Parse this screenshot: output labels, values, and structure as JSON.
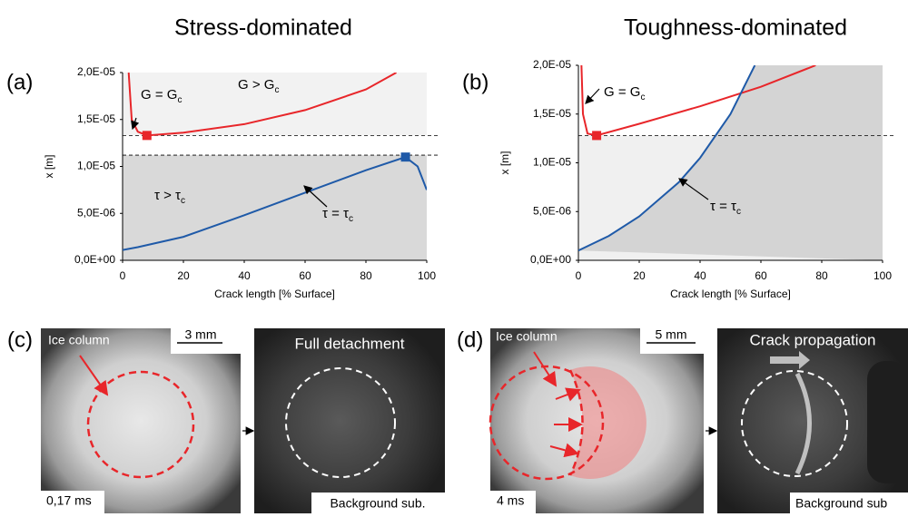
{
  "chart_data": [
    {
      "type": "line",
      "panel": "(a)",
      "title": "Stress-dominated",
      "xlabel": "Crack length [% Surface]",
      "ylabel": "x [m]",
      "xlim": [
        0,
        100
      ],
      "ylim": [
        0,
        2e-05
      ],
      "xticks": [
        0,
        20,
        40,
        60,
        80,
        100
      ],
      "yticks": [
        {
          "value": 0,
          "label": "0,0E+00"
        },
        {
          "value": 5e-06,
          "label": "5,0E-06"
        },
        {
          "value": 1e-05,
          "label": "1,0E-05"
        },
        {
          "value": 1.5e-05,
          "label": "1,5E-05"
        },
        {
          "value": 2e-05,
          "label": "2,0E-05"
        }
      ],
      "hlines": [
        1.33e-05,
        1.12e-05
      ],
      "series": [
        {
          "color": "#e8262a",
          "x": [
            2,
            3,
            5,
            8,
            20,
            40,
            60,
            80,
            90
          ],
          "values": [
            2e-05,
            1.5e-05,
            1.37e-05,
            1.33e-05,
            1.36e-05,
            1.45e-05,
            1.6e-05,
            1.82e-05,
            2e-05
          ],
          "highlight": [
            8,
            1.33e-05
          ]
        },
        {
          "color": "#1f5aa8",
          "x": [
            0,
            5,
            20,
            40,
            60,
            80,
            93,
            97,
            100
          ],
          "values": [
            1.1e-06,
            1.4e-06,
            2.5e-06,
            4.8e-06,
            7.2e-06,
            9.6e-06,
            1.1e-05,
            1e-05,
            7.5e-06
          ],
          "highlight": [
            93,
            1.1e-05
          ]
        }
      ],
      "annotations": [
        {
          "text": "G = G",
          "sub": "c"
        },
        {
          "text": "G > G",
          "sub": "c"
        },
        {
          "text": "τ > τ",
          "sub": "c"
        },
        {
          "text": "τ = τ",
          "sub": "c"
        }
      ]
    },
    {
      "type": "line",
      "panel": "(b)",
      "title": "Toughness-dominated",
      "xlabel": "Crack length [% Surface]",
      "ylabel": "x [m]",
      "xlim": [
        0,
        100
      ],
      "ylim": [
        0,
        2e-05
      ],
      "xticks": [
        0,
        20,
        40,
        60,
        80,
        100
      ],
      "yticks": [
        {
          "value": 0,
          "label": "0,0E+00"
        },
        {
          "value": 5e-06,
          "label": "5,0E-06"
        },
        {
          "value": 1e-05,
          "label": "1,0E-05"
        },
        {
          "value": 1.5e-05,
          "label": "1,5E-05"
        },
        {
          "value": 2e-05,
          "label": "2,0E-05"
        }
      ],
      "hlines": [
        1.28e-05
      ],
      "series": [
        {
          "color": "#e8262a",
          "x": [
            1,
            1.5,
            3,
            6,
            20,
            40,
            60,
            78
          ],
          "values": [
            2e-05,
            1.5e-05,
            1.3e-05,
            1.28e-05,
            1.4e-05,
            1.58e-05,
            1.78e-05,
            2e-05
          ],
          "highlight": [
            6,
            1.28e-05
          ]
        },
        {
          "color": "#1f5aa8",
          "x": [
            0,
            10,
            20,
            33,
            40,
            50,
            58
          ],
          "values": [
            1e-06,
            2.5e-06,
            4.5e-06,
            8e-06,
            1.05e-05,
            1.5e-05,
            2e-05
          ]
        }
      ],
      "annotations": [
        {
          "text": "G = G",
          "sub": "c"
        },
        {
          "text": "τ = τ",
          "sub": "c"
        }
      ]
    }
  ],
  "panels": [
    {
      "label": "(c)",
      "caption": "Ice column",
      "scale": "3 mm",
      "time": "0,17 ms",
      "title": "Full detachment",
      "footer": "Background sub."
    },
    {
      "label": "(d)",
      "caption": "Ice column",
      "scale": "5 mm",
      "time": "4 ms",
      "title": "Crack propagation",
      "footer": "Background sub"
    }
  ]
}
